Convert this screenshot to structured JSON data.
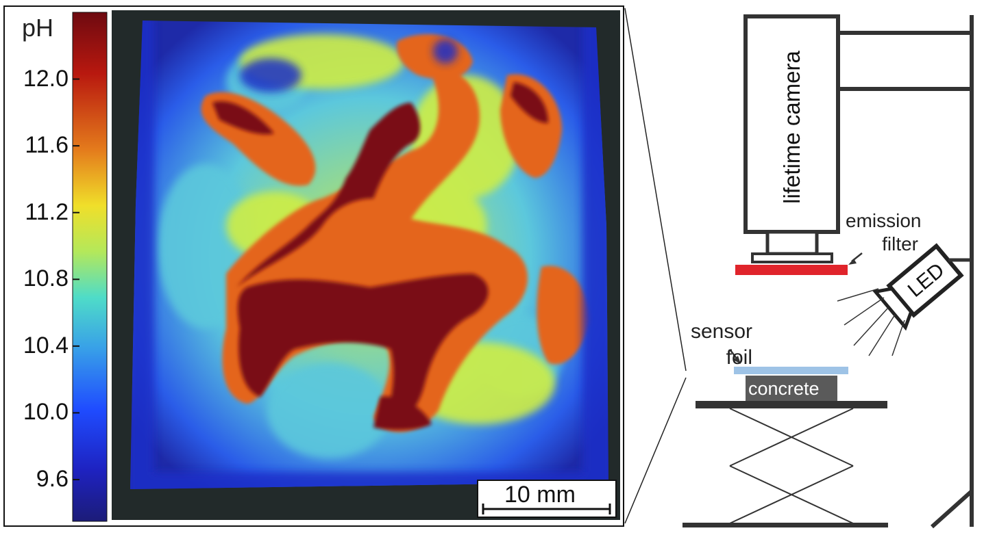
{
  "colorbar": {
    "title": "pH",
    "ticks": [
      "12.0",
      "11.6",
      "11.2",
      "10.8",
      "10.4",
      "10.0",
      "9.6"
    ],
    "tick_values": [
      12.0,
      11.6,
      11.2,
      10.8,
      10.4,
      10.0,
      9.6
    ],
    "range": [
      9.35,
      12.4
    ],
    "colormap": [
      "#1e1e8c",
      "#1f3cff",
      "#3cb4e8",
      "#8ad8d0",
      "#d8ef40",
      "#f3d22a",
      "#e88a1e",
      "#c23317",
      "#7a0d12"
    ]
  },
  "scale_bar": {
    "label": "10 mm"
  },
  "setup": {
    "camera_label": "lifetime camera",
    "emission_filter_label": "emission filter",
    "led_label": "LED",
    "sensor_foil_label": "sensor foil",
    "concrete_label": "concrete"
  },
  "colors": {
    "frame": "#111111",
    "filter": "#e0242b",
    "foil": "#9ec3e6",
    "concrete": "#5a5a5a",
    "stage": "#333333"
  }
}
